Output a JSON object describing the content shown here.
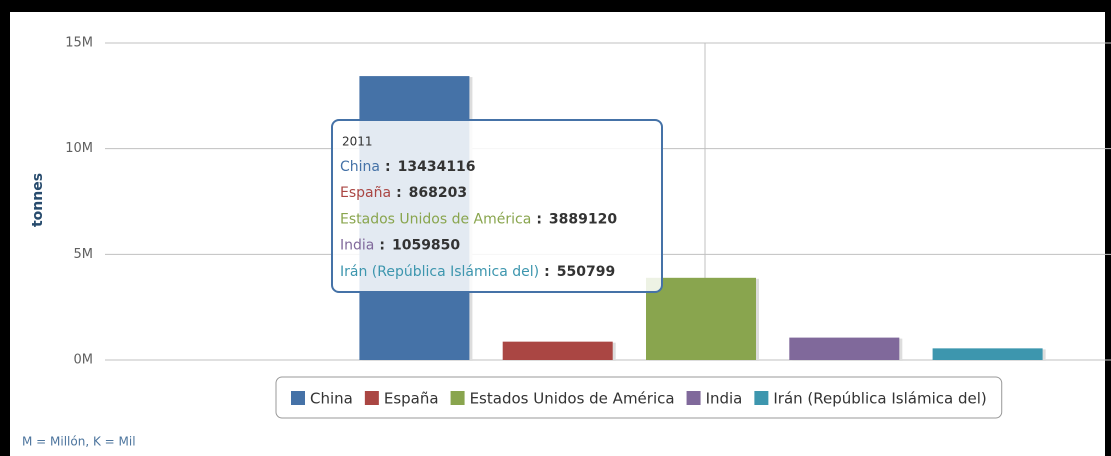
{
  "chart_data": {
    "type": "bar",
    "categories": [
      "2011"
    ],
    "y_axis_label": "tonnes",
    "ylim": [
      0,
      15000000
    ],
    "yticks": [
      {
        "value": 0,
        "label": "0M"
      },
      {
        "value": 5000000,
        "label": "5M"
      },
      {
        "value": 10000000,
        "label": "10M"
      },
      {
        "value": 15000000,
        "label": "15M"
      }
    ],
    "grid": true,
    "series": [
      {
        "name": "China",
        "color": "#4572a7",
        "values": [
          13434116
        ]
      },
      {
        "name": "España",
        "color": "#aa4643",
        "values": [
          868203
        ]
      },
      {
        "name": "Estados Unidos de América",
        "color": "#89a54e",
        "values": [
          3889120
        ]
      },
      {
        "name": "India",
        "color": "#80699b",
        "values": [
          1059850
        ]
      },
      {
        "name": "Irán (República Islámica del)",
        "color": "#3d96ae",
        "values": [
          550799
        ]
      }
    ],
    "tooltip_separator": ":",
    "legend": "bottom",
    "footnote": "M = Millón, K = Mil"
  }
}
